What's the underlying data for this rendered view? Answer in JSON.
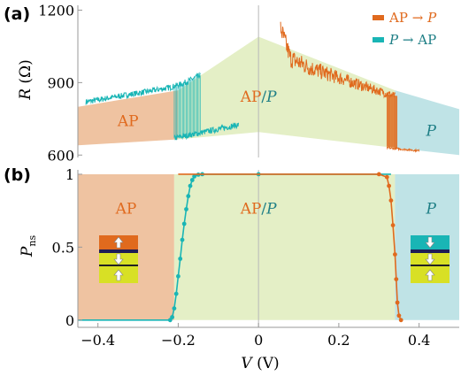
{
  "colors": {
    "ap_to_p": "#e06a1e",
    "p_to_ap": "#19b5b5",
    "region_ap": "#efc3a1",
    "region_mixed": "#e4efc6",
    "region_p": "#bfe3e6",
    "mixed_label_ap": "#e06a1e",
    "mixed_label_p": "#1f7f86",
    "axis": "#9a9a9a",
    "zero_line": "#b8b8b8"
  },
  "chart_data": [
    {
      "id": "a",
      "panel_label": "(a)",
      "type": "line",
      "ylabel_main": "R",
      "ylabel_unit": "(Ω)",
      "xlim": [
        -0.45,
        0.5
      ],
      "ylim": [
        590,
        1220
      ],
      "yticks": [
        {
          "value": 600,
          "label": "600"
        },
        {
          "value": 900,
          "label": "900"
        },
        {
          "value": 1200,
          "label": "1200"
        }
      ],
      "legend_position": "top-right",
      "legend": [
        {
          "key": "ap_to_p",
          "from": "AP",
          "arrow": "→",
          "to": "P"
        },
        {
          "key": "p_to_ap",
          "from": "P",
          "arrow": "→",
          "to": "AP"
        }
      ],
      "regions": [
        {
          "key": "ap",
          "label": "AP",
          "color_key": "region_ap",
          "upper": [
            [
              -0.45,
              800
            ],
            [
              -0.2,
              868
            ]
          ],
          "lower": [
            [
              -0.45,
              640
            ],
            [
              -0.2,
              665
            ]
          ]
        },
        {
          "key": "mixed",
          "label_a": "AP",
          "label_sep": "/",
          "label_b": "P",
          "color_key": "region_mixed",
          "upper": [
            [
              -0.2,
              868
            ],
            [
              0,
              1090
            ],
            [
              0.34,
              868
            ]
          ],
          "lower": [
            [
              -0.2,
              665
            ],
            [
              0,
              695
            ],
            [
              0.34,
              630
            ]
          ]
        },
        {
          "key": "p",
          "label": "P",
          "color_key": "region_p",
          "upper": [
            [
              0.34,
              868
            ],
            [
              0.5,
              790
            ]
          ],
          "lower": [
            [
              0.34,
              630
            ],
            [
              0.5,
              600
            ]
          ]
        }
      ],
      "series": [
        {
          "key": "p_to_ap",
          "color_key": "p_to_ap",
          "segments": [
            {
              "x": [
                -0.43,
                -0.35,
                -0.28,
                -0.22,
                -0.19,
                -0.145
              ],
              "y": [
                820,
                843,
                862,
                880,
                895,
                930
              ],
              "noise": 12
            },
            {
              "x": [
                -0.21,
                -0.05
              ],
              "y": [
                670,
                725
              ],
              "noise": 12
            }
          ],
          "switch_band": {
            "x": [
              -0.21,
              -0.145
            ],
            "low": [
              670,
              680
            ],
            "high": [
              880,
              930
            ]
          }
        },
        {
          "key": "ap_to_p",
          "color_key": "ap_to_p",
          "segments": [
            {
              "x": [
                0.055,
                0.08,
                0.13,
                0.2,
                0.27,
                0.34
              ],
              "y": [
                1125,
                1000,
                960,
                920,
                880,
                845
              ],
              "noise": 30
            },
            {
              "x": [
                0.32,
                0.4
              ],
              "y": [
                630,
                618
              ],
              "noise": 4
            }
          ],
          "switch_band": {
            "x": [
              0.32,
              0.345
            ],
            "low": [
              635,
              630
            ],
            "high": [
              850,
              845
            ]
          }
        }
      ]
    },
    {
      "id": "b",
      "panel_label": "(b)",
      "type": "scatter",
      "ylabel_main": "P",
      "ylabel_sub": "ns",
      "xlabel_main": "V",
      "xlabel_unit": "(V)",
      "xlim": [
        -0.45,
        0.5
      ],
      "ylim": [
        -0.05,
        1.03
      ],
      "xticks": [
        {
          "value": -0.4,
          "label": "−0.4"
        },
        {
          "value": -0.2,
          "label": "−0.2"
        },
        {
          "value": 0,
          "label": "0"
        },
        {
          "value": 0.2,
          "label": "0.2"
        },
        {
          "value": 0.4,
          "label": "0.4"
        }
      ],
      "yticks": [
        {
          "value": 0,
          "label": "0"
        },
        {
          "value": 0.5,
          "label": "0.5"
        },
        {
          "value": 1,
          "label": "1"
        }
      ],
      "region_bounds": [
        -0.21,
        0.34
      ],
      "region_labels": {
        "ap": "AP",
        "mixed_a": "AP",
        "mixed_sep": "/",
        "mixed_b": "P",
        "p": "P"
      },
      "series": [
        {
          "key": "p_to_ap",
          "color_key": "p_to_ap",
          "x": [
            -0.45,
            -0.22,
            -0.215,
            -0.21,
            -0.205,
            -0.2,
            -0.195,
            -0.19,
            -0.185,
            -0.18,
            -0.175,
            -0.17,
            -0.165,
            -0.16,
            -0.15,
            -0.14,
            0,
            0.33
          ],
          "y": [
            0,
            0,
            0.02,
            0.08,
            0.18,
            0.3,
            0.42,
            0.55,
            0.66,
            0.76,
            0.85,
            0.92,
            0.96,
            0.985,
            0.997,
            1,
            1,
            1
          ]
        },
        {
          "key": "ap_to_p",
          "color_key": "ap_to_p",
          "x": [
            -0.2,
            0.3,
            0.32,
            0.325,
            0.33,
            0.335,
            0.34,
            0.343,
            0.346,
            0.35,
            0.355
          ],
          "y": [
            1,
            1,
            0.98,
            0.92,
            0.82,
            0.65,
            0.45,
            0.28,
            0.12,
            0.03,
            0
          ]
        }
      ],
      "insets": [
        {
          "key": "ap-stack",
          "side": "left",
          "top_layer": "#e06a1e",
          "arrows": [
            "up",
            "down",
            "up"
          ]
        },
        {
          "key": "p-stack",
          "side": "right",
          "top_layer": "#19b5b5",
          "arrows": [
            "down",
            "down",
            "up"
          ]
        }
      ]
    }
  ]
}
